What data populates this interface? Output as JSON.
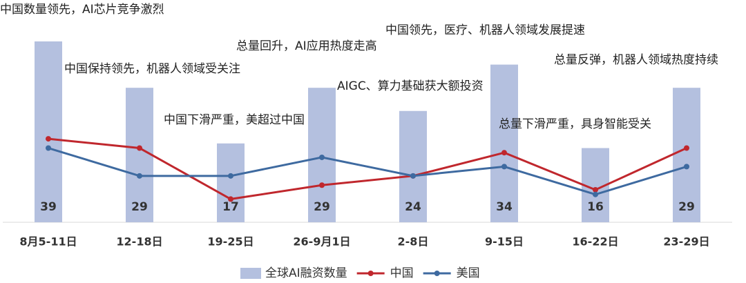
{
  "chart_data": {
    "type": "combo",
    "categories": [
      "8月5-11日",
      "12-18日",
      "19-25日",
      "26-9月1日",
      "2-8日",
      "9-15日",
      "16-22日",
      "23-29日"
    ],
    "ylim": [
      0,
      39
    ],
    "series": [
      {
        "name": "全球AI融资数量",
        "type": "bar",
        "color": "#b4c0df",
        "values": [
          39,
          29,
          17,
          29,
          24,
          34,
          16,
          29
        ]
      },
      {
        "name": "中国",
        "type": "line",
        "color": "#c0272d",
        "values": [
          18,
          16,
          5,
          8,
          10,
          15,
          7,
          16
        ]
      },
      {
        "name": "美国",
        "type": "line",
        "color": "#3e6aa0",
        "values": [
          16,
          10,
          10,
          14,
          10,
          12,
          6,
          12
        ]
      }
    ],
    "annotations": [
      "中国数量领先，AI芯片竞争激烈",
      "中国保持领先，机器人领域受关注",
      "中国下滑严重，美超过中国",
      "总量回升，AI应用热度走高",
      "AIGC、算力基础获大额投资",
      "中国领先，医疗、机器人领域发展提速",
      "总量下滑严重，具身智能受关",
      "总量反弹，机器人领域热度持续"
    ]
  }
}
